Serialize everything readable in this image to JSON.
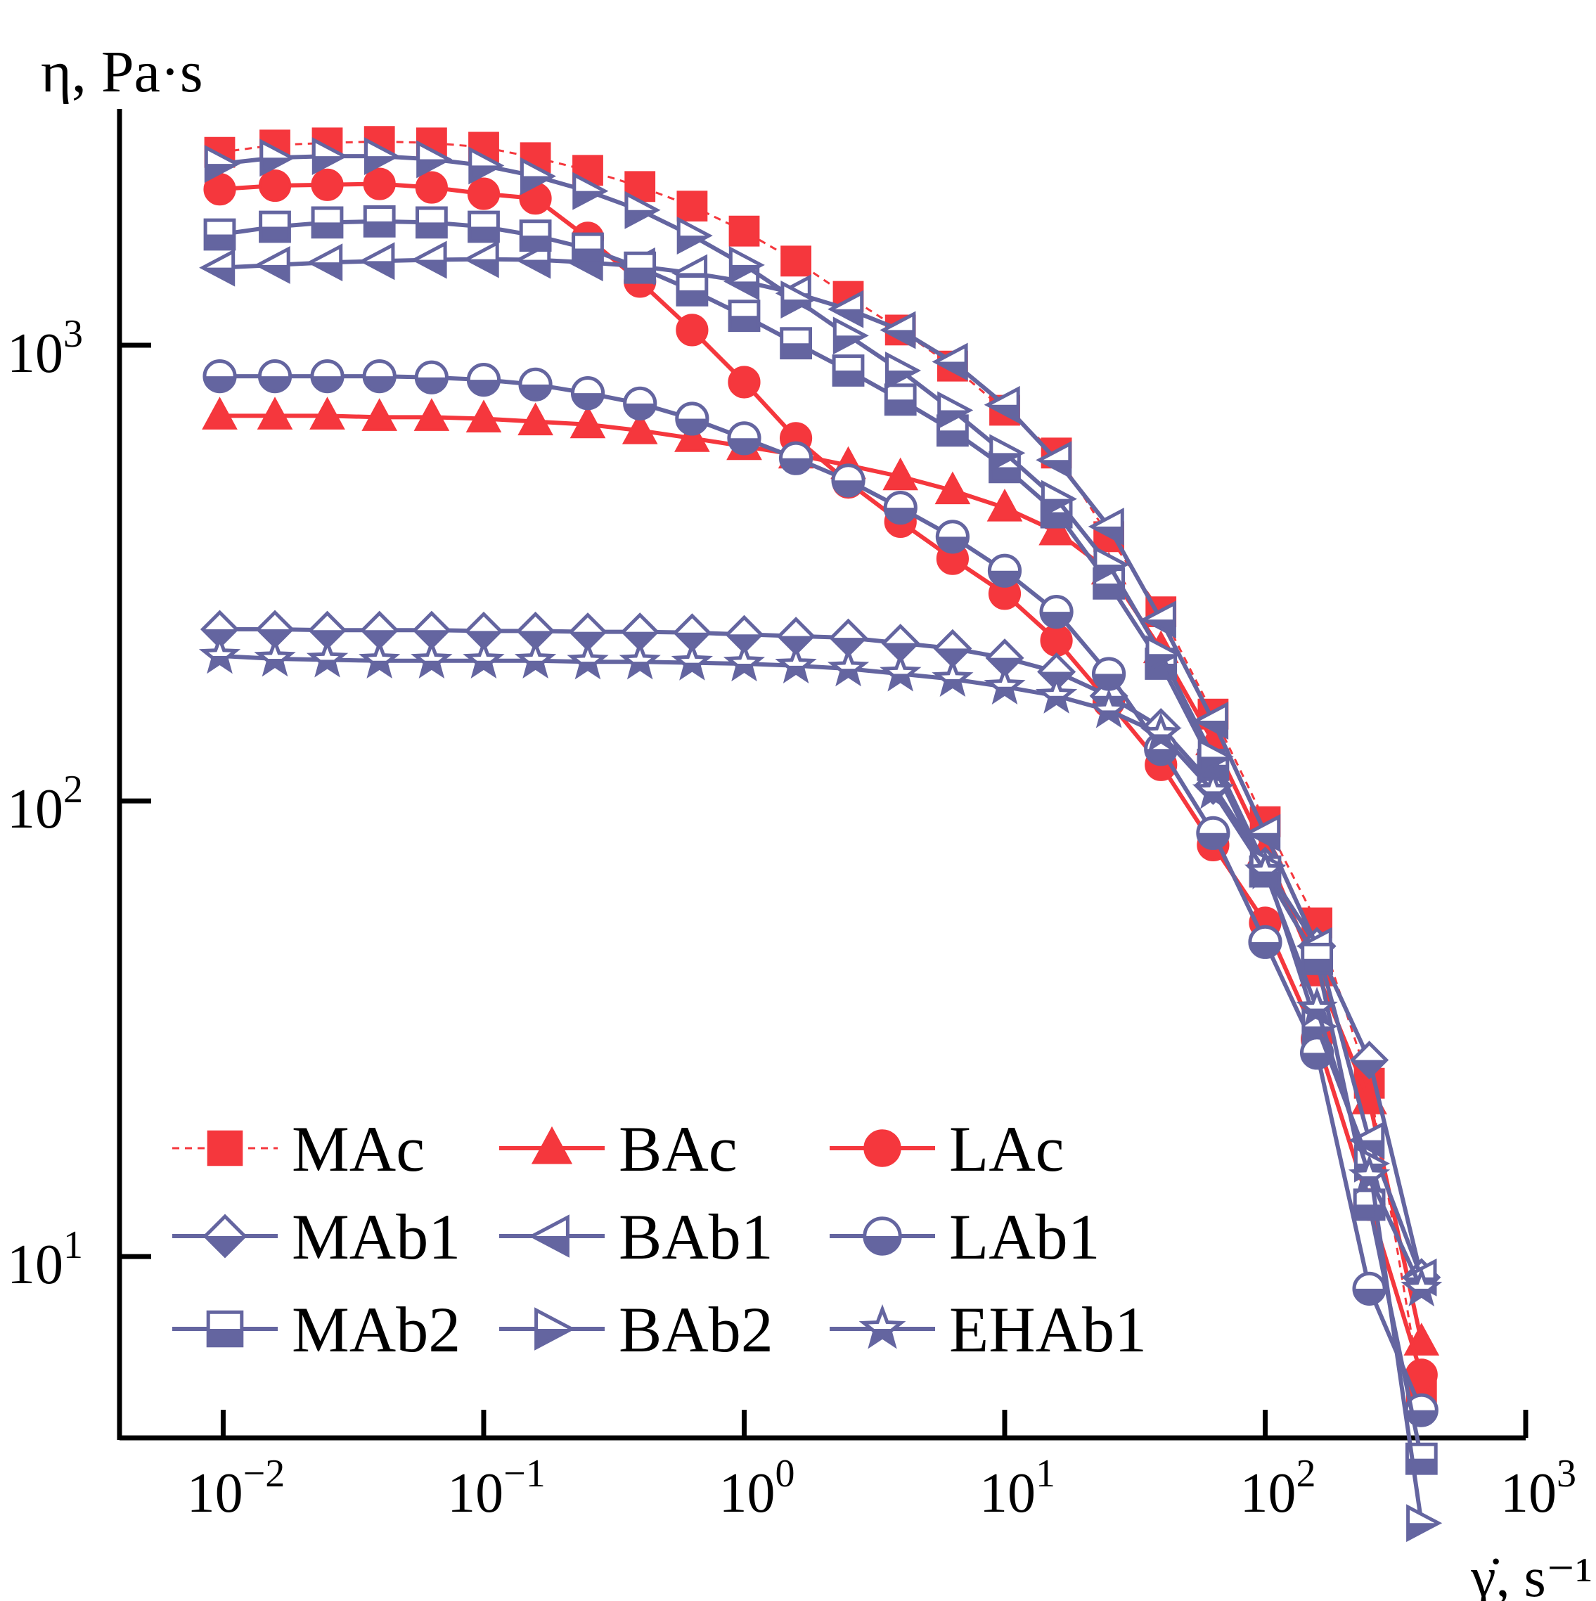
{
  "colors": {
    "red": "#f5373d",
    "blue": "#6465a0",
    "axis": "#000000"
  },
  "chart_data": {
    "type": "line",
    "xscale": "log",
    "yscale": "log",
    "xlim": [
      0.004,
      1000
    ],
    "ylim": [
      4,
      3300
    ],
    "ylabel": "η, Pa·s",
    "xlabel": "γ̇, s⁻¹",
    "xticks": [
      {
        "base": "10",
        "exp": "−2",
        "value": 0.01
      },
      {
        "base": "10",
        "exp": "−1",
        "value": 0.1
      },
      {
        "base": "10",
        "exp": "0",
        "value": 1
      },
      {
        "base": "10",
        "exp": "1",
        "value": 10
      },
      {
        "base": "10",
        "exp": "2",
        "value": 100
      },
      {
        "base": "10",
        "exp": "3",
        "value": 1000
      }
    ],
    "yticks": [
      {
        "base": "10",
        "exp": "1",
        "value": 10
      },
      {
        "base": "10",
        "exp": "2",
        "value": 100
      },
      {
        "base": "10",
        "exp": "3",
        "value": 1000
      }
    ],
    "legend_position": "bottom-left",
    "series": [
      {
        "name": "MAc",
        "color": "red",
        "marker": "square",
        "fill": "full",
        "dashed": true,
        "x": [
          0.0097,
          0.0158,
          0.0251,
          0.0398,
          0.0631,
          0.1,
          0.158,
          0.251,
          0.398,
          0.631,
          1.0,
          1.58,
          2.51,
          3.98,
          6.31,
          10,
          15.8,
          25.1,
          39.8,
          63.1,
          100,
          158,
          251,
          398
        ],
        "y": [
          2650,
          2750,
          2780,
          2800,
          2780,
          2720,
          2580,
          2420,
          2230,
          2020,
          1780,
          1530,
          1280,
          1080,
          900,
          720,
          580,
          380,
          260,
          155,
          90,
          54,
          24,
          5
        ]
      },
      {
        "name": "BAc",
        "color": "red",
        "marker": "triangle-up",
        "fill": "full",
        "dashed": false,
        "x": [
          0.0097,
          0.0158,
          0.0251,
          0.0398,
          0.0631,
          0.1,
          0.158,
          0.251,
          0.398,
          0.631,
          1.0,
          1.58,
          2.51,
          3.98,
          6.31,
          10,
          15.8,
          25.1,
          39.8,
          63.1,
          100,
          158,
          251,
          398
        ],
        "y": [
          700,
          700,
          700,
          695,
          695,
          690,
          680,
          670,
          650,
          625,
          600,
          575,
          545,
          515,
          480,
          440,
          390,
          320,
          215,
          135,
          78,
          42,
          22,
          6.5
        ]
      },
      {
        "name": "LAc",
        "color": "red",
        "marker": "circle",
        "fill": "full",
        "dashed": false,
        "x": [
          0.0097,
          0.0158,
          0.0251,
          0.0398,
          0.0631,
          0.1,
          0.158,
          0.251,
          0.398,
          0.631,
          1.0,
          1.58,
          2.51,
          3.98,
          6.31,
          10,
          15.8,
          25.1,
          39.8,
          63.1,
          100,
          158,
          251,
          398
        ],
        "y": [
          2200,
          2240,
          2250,
          2260,
          2220,
          2150,
          2100,
          1720,
          1380,
          1080,
          830,
          625,
          500,
          410,
          340,
          285,
          225,
          165,
          120,
          80,
          54,
          30,
          13,
          5.5
        ]
      },
      {
        "name": "MAb1",
        "color": "blue",
        "marker": "diamond",
        "fill": "half",
        "dashed": false,
        "x": [
          0.0097,
          0.0158,
          0.0251,
          0.0398,
          0.0631,
          0.1,
          0.158,
          0.251,
          0.398,
          0.631,
          1.0,
          1.58,
          2.51,
          3.98,
          6.31,
          10,
          15.8,
          25.1,
          39.8,
          63.1,
          100,
          158,
          251,
          398
        ],
        "y": [
          238,
          238,
          237,
          237,
          237,
          236,
          236,
          235,
          235,
          234,
          232,
          230,
          228,
          222,
          216,
          206,
          192,
          170,
          145,
          108,
          72,
          48,
          27,
          9
        ]
      },
      {
        "name": "BAb1",
        "color": "blue",
        "marker": "triangle-left",
        "fill": "half",
        "dashed": false,
        "x": [
          0.0097,
          0.0158,
          0.0251,
          0.0398,
          0.0631,
          0.1,
          0.158,
          0.251,
          0.398,
          0.631,
          1.0,
          1.58,
          2.51,
          3.98,
          6.31,
          10,
          15.8,
          25.1,
          39.8,
          63.1,
          100,
          158,
          251,
          398
        ],
        "y": [
          1480,
          1500,
          1520,
          1530,
          1540,
          1545,
          1540,
          1520,
          1490,
          1440,
          1380,
          1300,
          1200,
          1080,
          920,
          740,
          560,
          400,
          250,
          150,
          85,
          48,
          18,
          9
        ]
      },
      {
        "name": "LAb1",
        "color": "blue",
        "marker": "circle",
        "fill": "half",
        "dashed": false,
        "x": [
          0.0097,
          0.0158,
          0.0251,
          0.0398,
          0.0631,
          0.1,
          0.158,
          0.251,
          0.398,
          0.631,
          1.0,
          1.58,
          2.51,
          3.98,
          6.31,
          10,
          15.8,
          25.1,
          39.8,
          63.1,
          100,
          158,
          251,
          398
        ],
        "y": [
          855,
          855,
          855,
          855,
          850,
          840,
          820,
          785,
          745,
          690,
          625,
          565,
          505,
          440,
          380,
          320,
          260,
          190,
          130,
          85,
          49,
          28,
          8.5,
          4.6
        ]
      },
      {
        "name": "MAb2",
        "color": "blue",
        "marker": "square",
        "fill": "half",
        "dashed": false,
        "x": [
          0.0097,
          0.0158,
          0.0251,
          0.0398,
          0.0631,
          0.1,
          0.158,
          0.251,
          0.398,
          0.631,
          1.0,
          1.58,
          2.51,
          3.98,
          6.31,
          10,
          15.8,
          25.1,
          39.8,
          63.1,
          100,
          158,
          251,
          398
        ],
        "y": [
          1750,
          1820,
          1860,
          1870,
          1860,
          1820,
          1740,
          1630,
          1480,
          1320,
          1160,
          1010,
          880,
          760,
          650,
          540,
          430,
          300,
          200,
          120,
          70,
          45,
          13,
          3.6
        ]
      },
      {
        "name": "BAb2",
        "color": "blue",
        "marker": "triangle-right",
        "fill": "half",
        "dashed": false,
        "x": [
          0.0097,
          0.0158,
          0.0251,
          0.0398,
          0.0631,
          0.1,
          0.158,
          0.251,
          0.398,
          0.631,
          1.0,
          1.58,
          2.51,
          3.98,
          6.31,
          10,
          15.8,
          25.1,
          39.8,
          63.1,
          100,
          158,
          251,
          398
        ],
        "y": [
          2500,
          2580,
          2600,
          2600,
          2560,
          2480,
          2350,
          2180,
          1980,
          1740,
          1500,
          1260,
          1050,
          880,
          720,
          580,
          460,
          330,
          210,
          125,
          72,
          32,
          16,
          2.6
        ]
      },
      {
        "name": "EHAb1",
        "color": "blue",
        "marker": "star",
        "fill": "half",
        "dashed": false,
        "x": [
          0.0097,
          0.0158,
          0.0251,
          0.0398,
          0.0631,
          0.1,
          0.158,
          0.251,
          0.398,
          0.631,
          1.0,
          1.58,
          2.51,
          3.98,
          6.31,
          10,
          15.8,
          25.1,
          39.8,
          63.1,
          100,
          158,
          251,
          398
        ],
        "y": [
          208,
          205,
          204,
          203,
          203,
          203,
          203,
          202,
          202,
          201,
          200,
          198,
          195,
          190,
          185,
          178,
          170,
          158,
          140,
          105,
          70,
          35,
          15,
          8.5
        ]
      }
    ]
  }
}
